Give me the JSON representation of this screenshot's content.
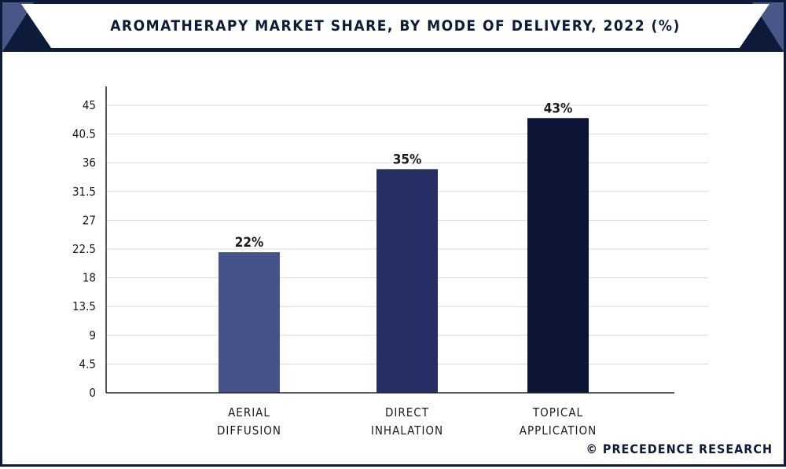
{
  "header": {
    "title": "AROMATHERAPY MARKET SHARE, BY MODE OF DELIVERY, 2022 (%)"
  },
  "footer": {
    "copyright": "© PRECEDENCE RESEARCH"
  },
  "colors": {
    "navy": "#0d1a3a",
    "accent": "#4a5588"
  },
  "chart_data": {
    "type": "bar",
    "title": "AROMATHERAPY MARKET SHARE, BY MODE OF DELIVERY, 2022 (%)",
    "categories": [
      [
        "AERIAL",
        "DIFFUSION"
      ],
      [
        "DIRECT",
        "INHALATION"
      ],
      [
        "TOPICAL",
        "APPLICATION"
      ]
    ],
    "values": [
      22,
      35,
      43
    ],
    "value_labels": [
      "22%",
      "35%",
      "43%"
    ],
    "bar_colors": [
      "#46528a",
      "#252f63",
      "#0d1536"
    ],
    "yticks": [
      "0",
      "4.5",
      "9",
      "13.5",
      "18",
      "22.5",
      "27",
      "31.5",
      "36",
      "40.5",
      "45"
    ],
    "ylim": [
      0,
      45
    ],
    "xlabel": "",
    "ylabel": "",
    "grid": true
  }
}
